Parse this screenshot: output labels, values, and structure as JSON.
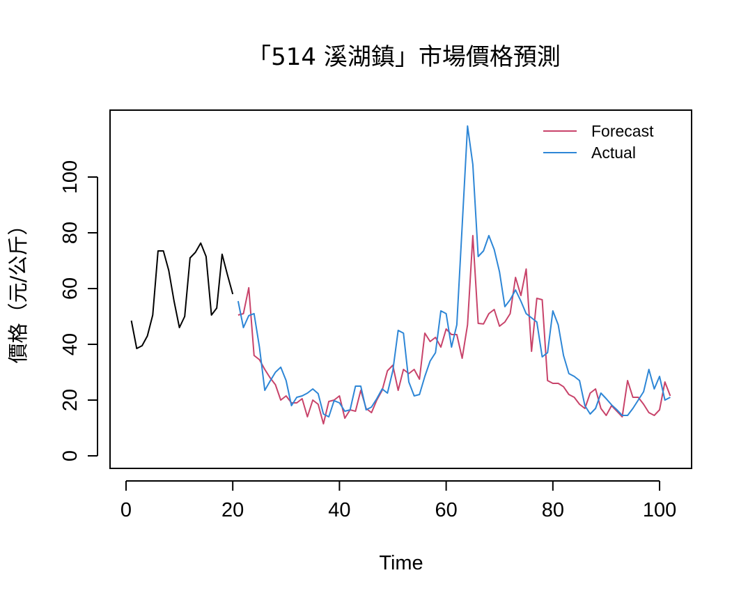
{
  "chart_data": {
    "type": "line",
    "title": "「514 溪湖鎮」市場價格預測",
    "xlabel": "Time",
    "ylabel": "價格（元/公斤）",
    "xlim": [
      -3,
      106
    ],
    "ylim": [
      -4.5,
      124
    ],
    "xticks": [
      0,
      20,
      40,
      60,
      80,
      100
    ],
    "yticks": [
      0,
      20,
      40,
      60,
      80,
      100
    ],
    "legend_position": "top-right",
    "series": [
      {
        "name": "",
        "color": "#000000",
        "x": [
          1,
          2,
          3,
          4,
          5,
          6,
          7,
          8,
          9,
          10,
          11,
          12,
          13,
          14,
          15,
          16,
          17,
          18,
          19,
          20
        ],
        "y": [
          48.5,
          38.5,
          39.5,
          43,
          50.5,
          73.5,
          73.5,
          66.5,
          55.5,
          46,
          50,
          71,
          73,
          76.3,
          71.5,
          50.5,
          53,
          72.3,
          65,
          58
        ]
      },
      {
        "name": "Forecast",
        "color": "#c8436a",
        "x": [
          21,
          22,
          23,
          24,
          25,
          26,
          27,
          28,
          29,
          30,
          31,
          32,
          33,
          34,
          35,
          36,
          37,
          38,
          39,
          40,
          41,
          42,
          43,
          44,
          45,
          46,
          47,
          48,
          49,
          50,
          51,
          52,
          53,
          54,
          55,
          56,
          57,
          58,
          59,
          60,
          61,
          62,
          63,
          64,
          65,
          66,
          67,
          68,
          69,
          70,
          71,
          72,
          73,
          74,
          75,
          76,
          77,
          78,
          79,
          80,
          81,
          82,
          83,
          84,
          85,
          86,
          87,
          88,
          89,
          90,
          91,
          92,
          93,
          94,
          95,
          96,
          97,
          98,
          99,
          100,
          101,
          102
        ],
        "y": [
          50.5,
          51,
          60.3,
          36,
          34.5,
          31,
          28,
          25.5,
          20,
          21.5,
          19,
          19,
          20.5,
          14,
          20,
          18.5,
          11.5,
          19.5,
          20,
          21.5,
          13.5,
          16.5,
          16,
          23.5,
          17,
          15.5,
          20,
          23.5,
          30.5,
          32.5,
          23.5,
          31,
          29.5,
          31,
          27.5,
          44,
          41,
          42.5,
          39,
          45.5,
          43.5,
          43.5,
          35,
          47,
          79,
          47.5,
          47.3,
          51,
          52.5,
          46.5,
          48,
          51,
          64,
          57.5,
          67,
          37.5,
          56.5,
          56,
          27,
          26,
          26,
          24.8,
          22,
          21,
          18.5,
          17,
          22.5,
          24,
          17,
          14.5,
          18,
          16,
          14,
          27,
          21,
          21,
          18.5,
          15.5,
          14.5,
          16.5,
          26.5,
          21.5
        ]
      },
      {
        "name": "Actual",
        "color": "#2d86d6",
        "x": [
          21,
          22,
          23,
          24,
          25,
          26,
          27,
          28,
          29,
          30,
          31,
          32,
          33,
          34,
          35,
          36,
          37,
          38,
          39,
          40,
          41,
          42,
          43,
          44,
          45,
          46,
          47,
          48,
          49,
          50,
          51,
          52,
          53,
          54,
          55,
          56,
          57,
          58,
          59,
          60,
          61,
          62,
          63,
          64,
          65,
          66,
          67,
          68,
          69,
          70,
          71,
          72,
          73,
          74,
          75,
          76,
          77,
          78,
          79,
          80,
          81,
          82,
          83,
          84,
          85,
          86,
          87,
          88,
          89,
          90,
          91,
          92,
          93,
          94,
          95,
          96,
          97,
          98,
          99,
          100,
          101,
          102
        ],
        "y": [
          55.5,
          46,
          50.3,
          51,
          39,
          23.5,
          26.8,
          30,
          31.8,
          27,
          18,
          21,
          21.5,
          22.5,
          24,
          22.3,
          15,
          14,
          19.8,
          19,
          16,
          16.5,
          25,
          25,
          16.5,
          17.5,
          20.5,
          24,
          22.5,
          30.5,
          45,
          44,
          26.5,
          21.5,
          22,
          28.5,
          34,
          37,
          52,
          51,
          39,
          47,
          82.5,
          118.3,
          104.5,
          71.5,
          73.5,
          79,
          74,
          66,
          53.5,
          56,
          59.5,
          55.5,
          51,
          49.5,
          48,
          35.5,
          37,
          52,
          47,
          36,
          29.5,
          28.5,
          27,
          18,
          15,
          17,
          22.5,
          20.5,
          18.3,
          16.5,
          14.5,
          14.5,
          17,
          20,
          23,
          31,
          24,
          28.5,
          20,
          21
        ]
      }
    ]
  }
}
